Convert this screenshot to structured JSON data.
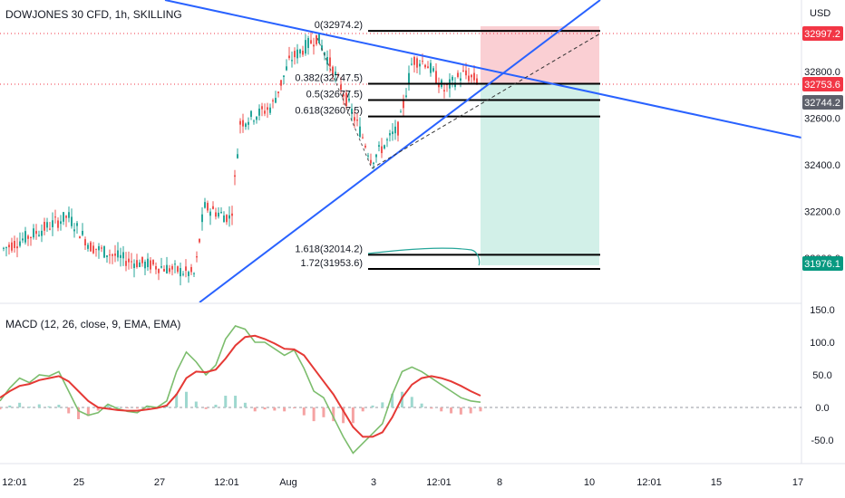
{
  "header": {
    "symbol_title": "DOWJONES 30 CFD, 1h, SKILLING",
    "currency": "USD"
  },
  "macd": {
    "title": "MACD (12, 26, close, 9, EMA, EMA)",
    "axis_ticks": [
      "150.0",
      "100.0",
      "50.0",
      "0.0",
      "-50.0"
    ]
  },
  "colors": {
    "up": "#26a69a",
    "down": "#ef5350",
    "trendline": "#2962ff",
    "fib": "#000000",
    "stop_zone": "#f9c7cb",
    "target_zone": "#cdeee6",
    "macd_line": "#7cbd6d",
    "signal_line": "#e53935",
    "badge_red": "#f23645",
    "badge_dark": "#5d606b",
    "badge_green": "#089981"
  },
  "chart_data": [
    {
      "type": "candlestick",
      "title": "DOWJONES 30 CFD, 1h, SKILLING",
      "y_axis": {
        "ticks": [
          "32800.0",
          "32600.0",
          "32400.0",
          "32200.0",
          "32000.0"
        ],
        "range": [
          31850,
          33090
        ]
      },
      "x_axis": {
        "ticks": [
          "12:01",
          "25",
          "27",
          "12:01",
          "Aug",
          "3",
          "12:01",
          "8",
          "10",
          "12:01",
          "15",
          "17"
        ]
      },
      "price_labels": {
        "top": "32997.2",
        "current": "32753.6",
        "previous": "32744.2",
        "target": "31976.1"
      },
      "fibonacci": [
        {
          "text": "0(32974.2)",
          "level": 32974.2
        },
        {
          "text": "0.382(32747.5)",
          "level": 32747.5
        },
        {
          "text": "0.5(32677.5)",
          "level": 32677.5
        },
        {
          "text": "0.618(32607.5)",
          "level": 32607.5
        },
        {
          "text": "1.618(32014.2)",
          "level": 32014.2
        },
        {
          "text": "1.72(31953.6)",
          "level": 31953.6
        }
      ],
      "position": {
        "side": "short",
        "entry": 32753.6,
        "stop": 32997.2,
        "target": 31976.1
      }
    },
    {
      "type": "line",
      "title": "MACD (12, 26, close, 9, EMA, EMA)",
      "y_axis": {
        "ticks": [
          "150.0",
          "100.0",
          "50.0",
          "0.0",
          "-50.0"
        ],
        "range": [
          -75,
          160
        ]
      },
      "series": [
        {
          "name": "MACD",
          "values": [
            10,
            30,
            45,
            38,
            50,
            48,
            55,
            25,
            -5,
            -12,
            -8,
            5,
            -2,
            -6,
            -8,
            2,
            0,
            10,
            55,
            85,
            70,
            50,
            65,
            105,
            125,
            120,
            100,
            100,
            90,
            80,
            88,
            60,
            25,
            15,
            -15,
            -45,
            -70,
            -55,
            -40,
            -25,
            20,
            55,
            62,
            55,
            45,
            35,
            25,
            15,
            10,
            8
          ]
        },
        {
          "name": "Signal",
          "values": [
            15,
            25,
            33,
            36,
            42,
            45,
            48,
            40,
            25,
            10,
            0,
            -2,
            -4,
            -5,
            -5,
            -3,
            -1,
            3,
            20,
            45,
            55,
            54,
            58,
            75,
            95,
            108,
            110,
            105,
            98,
            90,
            89,
            80,
            60,
            40,
            20,
            -5,
            -30,
            -45,
            -45,
            -38,
            -15,
            15,
            35,
            45,
            48,
            45,
            40,
            33,
            25,
            18
          ]
        },
        {
          "name": "Histogram",
          "values": [
            -5,
            5,
            12,
            2,
            8,
            3,
            7,
            -15,
            -30,
            -22,
            -8,
            7,
            2,
            -1,
            -3,
            5,
            1,
            7,
            35,
            40,
            15,
            -4,
            7,
            30,
            30,
            12,
            -10,
            -5,
            -8,
            -10,
            -1,
            -20,
            -35,
            -25,
            -35,
            -40,
            -40,
            -10,
            5,
            13,
            35,
            40,
            27,
            10,
            -3,
            -10,
            -15,
            -18,
            -15,
            -10
          ]
        }
      ]
    }
  ]
}
